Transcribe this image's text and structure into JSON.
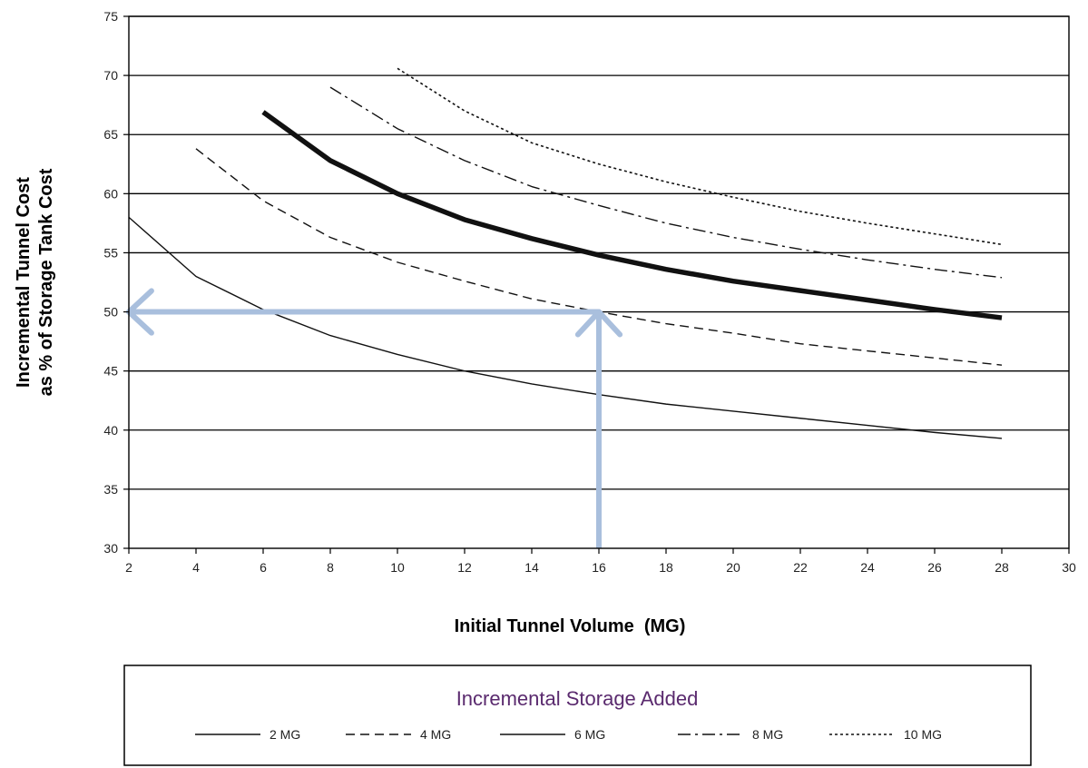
{
  "chart_data": {
    "type": "line",
    "xlabel": "Initial Tunnel Volume  (MG)",
    "ylabel_lines": [
      "Incremental Tunnel Cost",
      "as % of Storage Tank Cost"
    ],
    "xlim": [
      2,
      30
    ],
    "ylim": [
      30,
      75
    ],
    "x_ticks": [
      2,
      4,
      6,
      8,
      10,
      12,
      14,
      16,
      18,
      20,
      22,
      24,
      26,
      28,
      30
    ],
    "y_ticks": [
      30,
      35,
      40,
      45,
      50,
      55,
      60,
      65,
      70,
      75
    ],
    "grid": "horizontal",
    "legend": {
      "title": "Incremental Storage Added",
      "placement": "bottom"
    },
    "series": [
      {
        "name": "2 MG",
        "style": "solid-thin",
        "x": [
          2,
          4,
          6,
          8,
          10,
          12,
          14,
          16,
          18,
          20,
          22,
          24,
          26,
          28
        ],
        "y": [
          58.0,
          53.0,
          50.2,
          48.0,
          46.4,
          45.0,
          43.9,
          43.0,
          42.2,
          41.6,
          41.0,
          40.4,
          39.8,
          39.3
        ]
      },
      {
        "name": "4 MG",
        "style": "dashed",
        "x": [
          4,
          6,
          8,
          10,
          12,
          14,
          16,
          18,
          20,
          22,
          24,
          26,
          28
        ],
        "y": [
          63.8,
          59.4,
          56.3,
          54.2,
          52.6,
          51.1,
          50.0,
          49.0,
          48.2,
          47.3,
          46.7,
          46.1,
          45.5
        ]
      },
      {
        "name": "6 MG",
        "style": "solid-bold",
        "x": [
          6,
          8,
          10,
          12,
          14,
          16,
          18,
          20,
          22,
          24,
          26,
          28
        ],
        "y": [
          66.9,
          62.8,
          60.0,
          57.8,
          56.2,
          54.8,
          53.6,
          52.6,
          51.8,
          51.0,
          50.2,
          49.5
        ]
      },
      {
        "name": "8 MG",
        "style": "dash-dot",
        "x": [
          8,
          10,
          12,
          14,
          16,
          18,
          20,
          22,
          24,
          26,
          28
        ],
        "y": [
          69.0,
          65.5,
          62.8,
          60.6,
          59.0,
          57.5,
          56.3,
          55.3,
          54.4,
          53.6,
          52.9
        ]
      },
      {
        "name": "10 MG",
        "style": "dotted",
        "x": [
          10,
          12,
          14,
          16,
          18,
          20,
          22,
          24,
          26,
          28
        ],
        "y": [
          70.6,
          67.0,
          64.3,
          62.5,
          61.0,
          59.7,
          58.5,
          57.5,
          56.6,
          55.7
        ]
      }
    ],
    "annotations": [
      {
        "type": "arrow",
        "from": [
          16,
          30
        ],
        "to": [
          16,
          50
        ]
      },
      {
        "type": "arrow",
        "from": [
          16,
          50
        ],
        "to": [
          2,
          50
        ]
      }
    ]
  },
  "colors": {
    "series_line": "#111111",
    "grid": "#000000",
    "arrow": "#a9bfdd",
    "legend_title": "#5a2a6e"
  }
}
